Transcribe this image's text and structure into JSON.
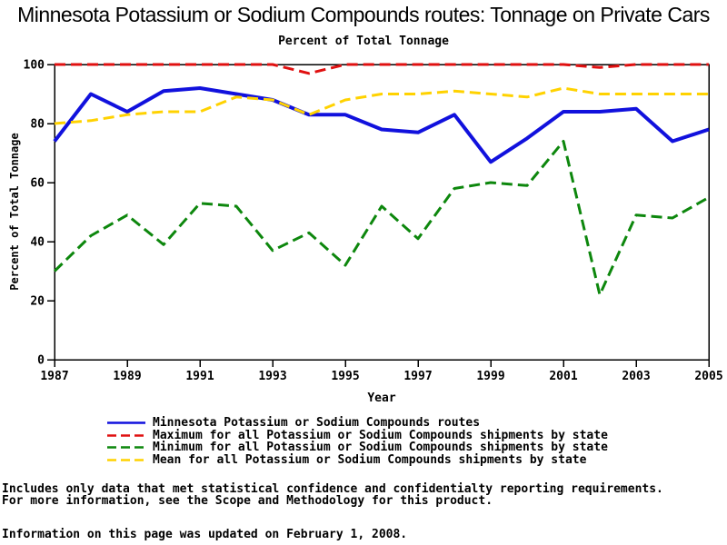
{
  "title": "Minnesota Potassium or Sodium Compounds routes: Tonnage on Private Cars",
  "subtitle": "Percent of Total Tonnage",
  "chart_data": {
    "type": "line",
    "title": "Minnesota Potassium or Sodium Compounds routes: Tonnage on Private Cars",
    "subtitle": "Percent of Total Tonnage",
    "xlabel": "Year",
    "ylabel": "Percent of Total Tonnage",
    "x": [
      1987,
      1988,
      1989,
      1990,
      1991,
      1992,
      1993,
      1994,
      1995,
      1996,
      1997,
      1998,
      1999,
      2000,
      2001,
      2002,
      2003,
      2004,
      2005
    ],
    "x_ticks": [
      1987,
      1989,
      1991,
      1993,
      1995,
      1997,
      1999,
      2001,
      2003,
      2005
    ],
    "y_ticks": [
      0,
      20,
      40,
      60,
      80,
      100
    ],
    "ylim": [
      0,
      100
    ],
    "xlim": [
      1987,
      2005
    ],
    "grid": false,
    "legend_position": "bottom-left",
    "series": [
      {
        "name": "Minnesota Potassium or Sodium Compounds routes",
        "color": "#1111DD",
        "style": "solid",
        "width": 4,
        "values": [
          74,
          90,
          84,
          91,
          92,
          90,
          88,
          83,
          83,
          78,
          77,
          83,
          67,
          75,
          84,
          84,
          85,
          74,
          78
        ]
      },
      {
        "name": "Maximum for all Potassium or Sodium Compounds shipments by state",
        "color": "#E01010",
        "style": "dashed",
        "width": 3,
        "values": [
          100,
          100,
          100,
          100,
          100,
          100,
          100,
          97,
          100,
          100,
          100,
          100,
          100,
          100,
          100,
          99,
          100,
          100,
          100
        ]
      },
      {
        "name": "Minimum for all Potassium or Sodium Compounds shipments by state",
        "color": "#0D870D",
        "style": "dashed",
        "width": 3,
        "values": [
          30,
          42,
          49,
          39,
          53,
          52,
          37,
          43,
          32,
          52,
          41,
          58,
          60,
          59,
          74,
          22,
          49,
          48,
          55
        ]
      },
      {
        "name": "Mean for all Potassium or Sodium Compounds shipments by state",
        "color": "#FFD200",
        "style": "dashed",
        "width": 3,
        "values": [
          80,
          81,
          83,
          84,
          84,
          89,
          88,
          83,
          88,
          90,
          90,
          91,
          90,
          89,
          92,
          90,
          90,
          90,
          90
        ]
      }
    ]
  },
  "footer": {
    "line1": "Includes only data that met statistical confidence and confidentialty reporting requirements.",
    "line2": "For more information, see the Scope and Methodology for this product.",
    "line3": "Information on this page was updated on February 1, 2008."
  }
}
